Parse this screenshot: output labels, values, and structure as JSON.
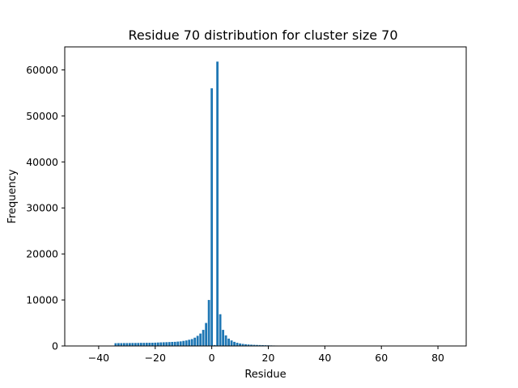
{
  "chart_data": {
    "type": "bar",
    "title": "Residue 70  distribution for cluster size 70",
    "xlabel": "Residue",
    "ylabel": "Frequency",
    "xlim": [
      -52,
      90
    ],
    "ylim": [
      0,
      65000
    ],
    "xticks": [
      -40,
      -20,
      0,
      20,
      40,
      60,
      80
    ],
    "xtick_labels": [
      "−40",
      "−20",
      "0",
      "20",
      "40",
      "60",
      "80"
    ],
    "yticks": [
      0,
      10000,
      20000,
      30000,
      40000,
      50000,
      60000
    ],
    "ytick_labels": [
      "0",
      "10000",
      "20000",
      "30000",
      "40000",
      "50000",
      "60000"
    ],
    "bar_color": "#1f77b4",
    "grid": false,
    "legend": "none",
    "x": [
      -44,
      -43,
      -42,
      -41,
      -40,
      -39,
      -38,
      -37,
      -36,
      -35,
      -34,
      -33,
      -32,
      -31,
      -30,
      -29,
      -28,
      -27,
      -26,
      -25,
      -24,
      -23,
      -22,
      -21,
      -20,
      -19,
      -18,
      -17,
      -16,
      -15,
      -14,
      -13,
      -12,
      -11,
      -10,
      -9,
      -8,
      -7,
      -6,
      -5,
      -4,
      -3,
      -2,
      -1,
      0,
      1,
      2,
      3,
      4,
      5,
      6,
      7,
      8,
      9,
      10,
      11,
      12,
      13,
      14,
      15,
      16,
      17,
      18,
      19,
      20,
      21,
      22,
      23,
      24,
      25,
      26,
      27,
      28,
      29,
      30,
      31,
      32,
      33,
      34,
      35,
      36,
      37,
      38,
      39,
      40,
      41,
      42,
      43,
      44,
      45,
      46,
      47,
      48,
      49,
      50,
      51,
      52,
      53,
      54,
      55,
      56,
      57,
      58,
      59,
      60,
      61,
      62,
      63,
      64,
      65,
      66,
      67,
      68,
      69,
      70,
      71,
      72,
      73,
      74,
      75,
      76,
      77,
      78,
      79,
      80,
      81,
      82,
      83,
      84,
      85
    ],
    "values": [
      10,
      10,
      10,
      15,
      15,
      15,
      15,
      20,
      20,
      30,
      600,
      620,
      620,
      630,
      630,
      640,
      650,
      650,
      660,
      680,
      680,
      690,
      700,
      700,
      720,
      750,
      780,
      800,
      820,
      850,
      880,
      900,
      950,
      1000,
      1100,
      1200,
      1350,
      1500,
      1800,
      2200,
      2700,
      3500,
      5000,
      10000,
      56000,
      200,
      61800,
      6900,
      3500,
      2300,
      1600,
      1200,
      900,
      700,
      550,
      450,
      380,
      320,
      280,
      250,
      220,
      200,
      180,
      160,
      140,
      120,
      100,
      90,
      80,
      70,
      60,
      50,
      40,
      30,
      25,
      20,
      15,
      10,
      10,
      5,
      5,
      5,
      5,
      5,
      5,
      5,
      5,
      5,
      5,
      5,
      5,
      5,
      5,
      5,
      5,
      5,
      5,
      5,
      5,
      5,
      5,
      5,
      5,
      5,
      5,
      5,
      5,
      5,
      5,
      5,
      5,
      5,
      5,
      5,
      5,
      5,
      5,
      5,
      5,
      5,
      5,
      5,
      5,
      5,
      5,
      5,
      5,
      5,
      5,
      5
    ]
  }
}
